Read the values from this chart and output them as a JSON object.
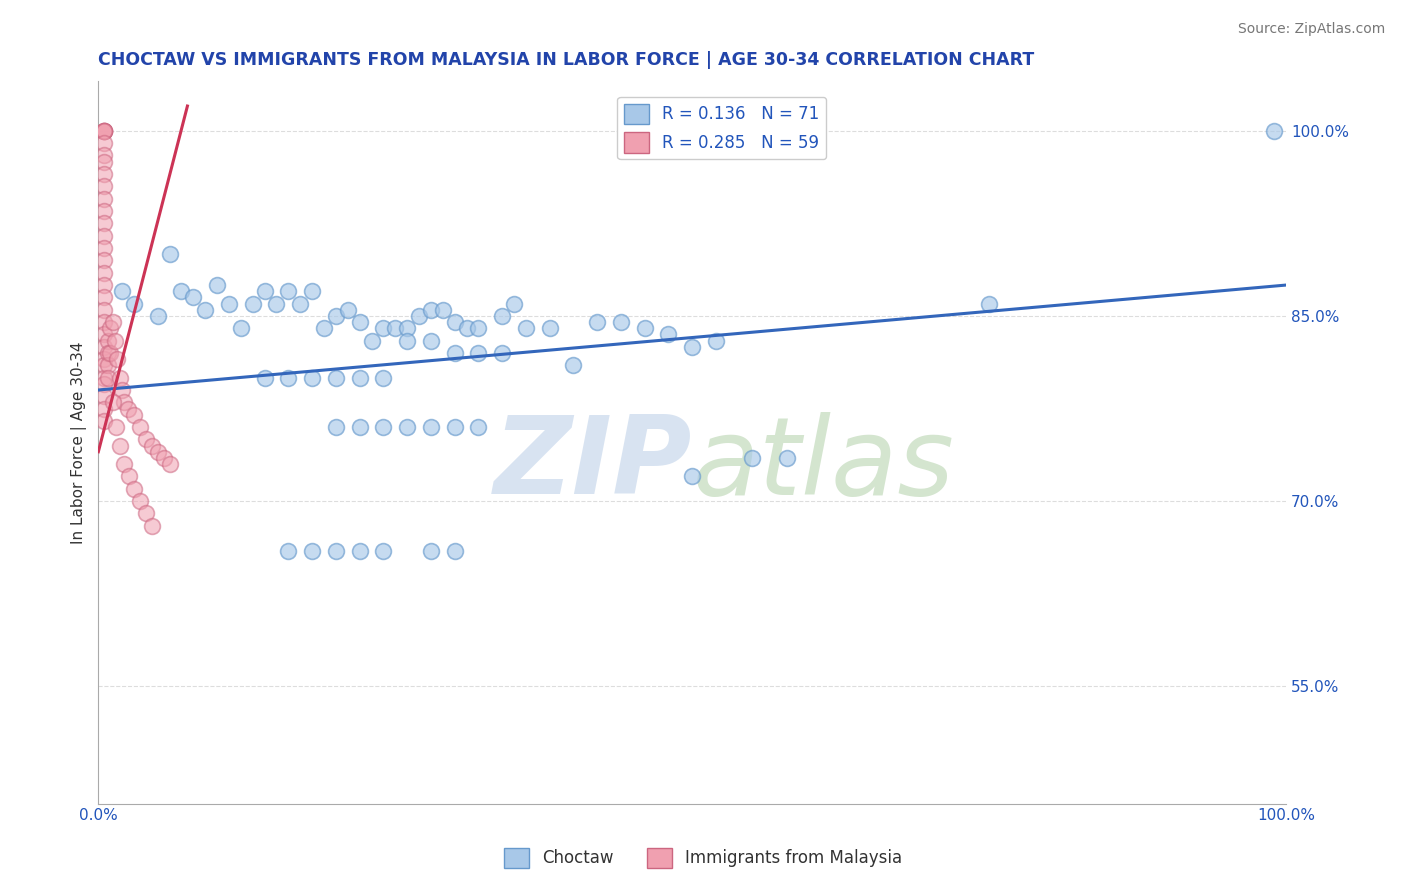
{
  "title": "CHOCTAW VS IMMIGRANTS FROM MALAYSIA IN LABOR FORCE | AGE 30-34 CORRELATION CHART",
  "source": "Source: ZipAtlas.com",
  "ylabel": "In Labor Force | Age 30-34",
  "xlim": [
    0.0,
    1.0
  ],
  "ylim": [
    0.455,
    1.04
  ],
  "yticks": [
    0.55,
    0.7,
    0.85,
    1.0
  ],
  "ytick_labels": [
    "55.0%",
    "70.0%",
    "85.0%",
    "100.0%"
  ],
  "choctaw_legend": "Choctaw",
  "malaysia_legend": "Immigrants from Malaysia",
  "blue_color": "#a8c8e8",
  "blue_edge": "#6699cc",
  "pink_color": "#f0a0b0",
  "pink_edge": "#cc6680",
  "trend_blue": "#3366bb",
  "trend_pink": "#cc3355",
  "title_color": "#2244aa",
  "source_color": "#777777",
  "axis_color": "#aaaaaa",
  "grid_color": "#dddddd",
  "blue_trend_x": [
    0.0,
    1.0
  ],
  "blue_trend_y": [
    0.79,
    0.875
  ],
  "pink_trend_x": [
    0.0,
    0.075
  ],
  "pink_trend_y": [
    0.74,
    1.02
  ],
  "choctaw_x": [
    0.02,
    0.03,
    0.05,
    0.06,
    0.07,
    0.08,
    0.09,
    0.1,
    0.11,
    0.12,
    0.13,
    0.14,
    0.15,
    0.16,
    0.17,
    0.18,
    0.19,
    0.2,
    0.21,
    0.22,
    0.23,
    0.24,
    0.25,
    0.26,
    0.27,
    0.28,
    0.29,
    0.3,
    0.31,
    0.32,
    0.34,
    0.36,
    0.38,
    0.4,
    0.42,
    0.44,
    0.46,
    0.48,
    0.5,
    0.52,
    0.55,
    0.58,
    0.26,
    0.28,
    0.3,
    0.32,
    0.34,
    0.14,
    0.16,
    0.18,
    0.2,
    0.22,
    0.24,
    0.2,
    0.22,
    0.24,
    0.26,
    0.28,
    0.3,
    0.32,
    0.35,
    0.75,
    0.99,
    0.5,
    0.3,
    0.28,
    0.24,
    0.22,
    0.2,
    0.18,
    0.16
  ],
  "choctaw_y": [
    0.87,
    0.86,
    0.85,
    0.9,
    0.87,
    0.865,
    0.855,
    0.875,
    0.86,
    0.84,
    0.86,
    0.87,
    0.86,
    0.87,
    0.86,
    0.87,
    0.84,
    0.85,
    0.855,
    0.845,
    0.83,
    0.84,
    0.84,
    0.84,
    0.85,
    0.855,
    0.855,
    0.845,
    0.84,
    0.84,
    0.85,
    0.84,
    0.84,
    0.81,
    0.845,
    0.845,
    0.84,
    0.835,
    0.825,
    0.83,
    0.735,
    0.735,
    0.83,
    0.83,
    0.82,
    0.82,
    0.82,
    0.8,
    0.8,
    0.8,
    0.8,
    0.8,
    0.8,
    0.76,
    0.76,
    0.76,
    0.76,
    0.76,
    0.76,
    0.76,
    0.86,
    0.86,
    1.0,
    0.72,
    0.66,
    0.66,
    0.66,
    0.66,
    0.66,
    0.66,
    0.66
  ],
  "malaysia_x": [
    0.005,
    0.005,
    0.005,
    0.005,
    0.005,
    0.005,
    0.005,
    0.005,
    0.005,
    0.005,
    0.005,
    0.005,
    0.005,
    0.005,
    0.005,
    0.005,
    0.005,
    0.005,
    0.005,
    0.005,
    0.005,
    0.005,
    0.005,
    0.005,
    0.005,
    0.005,
    0.005,
    0.005,
    0.005,
    0.005,
    0.008,
    0.008,
    0.008,
    0.008,
    0.01,
    0.01,
    0.012,
    0.014,
    0.016,
    0.018,
    0.02,
    0.022,
    0.025,
    0.03,
    0.035,
    0.04,
    0.045,
    0.05,
    0.055,
    0.06,
    0.012,
    0.015,
    0.018,
    0.022,
    0.026,
    0.03,
    0.035,
    0.04,
    0.045
  ],
  "malaysia_y": [
    1.0,
    1.0,
    1.0,
    1.0,
    1.0,
    0.99,
    0.98,
    0.975,
    0.965,
    0.955,
    0.945,
    0.935,
    0.925,
    0.915,
    0.905,
    0.895,
    0.885,
    0.875,
    0.865,
    0.855,
    0.845,
    0.835,
    0.825,
    0.815,
    0.81,
    0.8,
    0.795,
    0.785,
    0.775,
    0.765,
    0.83,
    0.82,
    0.81,
    0.8,
    0.84,
    0.82,
    0.845,
    0.83,
    0.815,
    0.8,
    0.79,
    0.78,
    0.775,
    0.77,
    0.76,
    0.75,
    0.745,
    0.74,
    0.735,
    0.73,
    0.78,
    0.76,
    0.745,
    0.73,
    0.72,
    0.71,
    0.7,
    0.69,
    0.68
  ]
}
